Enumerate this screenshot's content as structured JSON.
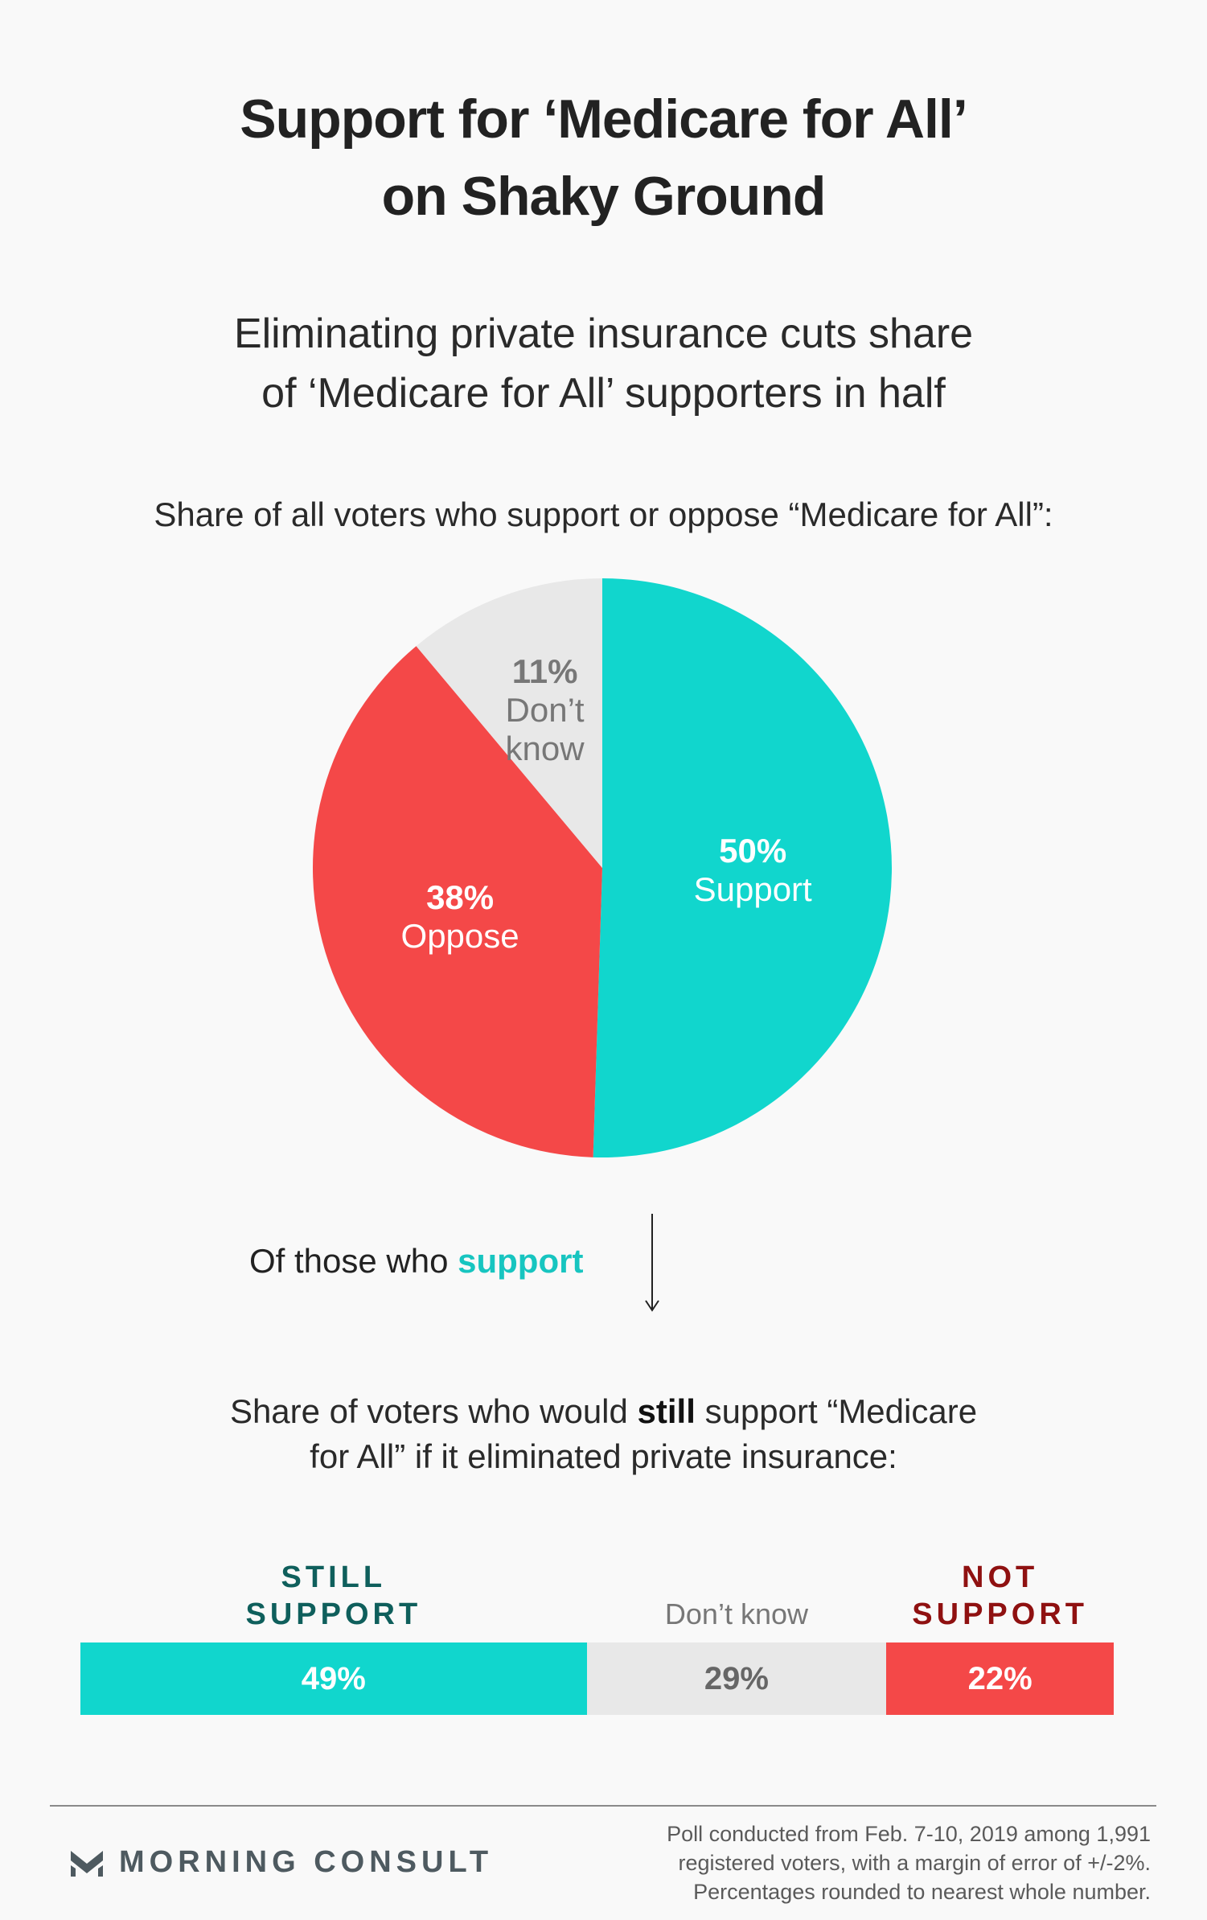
{
  "header": {
    "title_line1": "Support for ‘Medicare for All’",
    "title_line2": "on Shaky Ground",
    "subtitle_line1": "Eliminating private insurance cuts share",
    "subtitle_line2": "of ‘Medicare for All’ supporters in half"
  },
  "pie_section": {
    "caption": "Share of all voters who support or oppose “Medicare for All”:"
  },
  "transition": {
    "prefix": "Of those who ",
    "highlight": "support"
  },
  "bar_section": {
    "caption_part1": "Share of voters who would ",
    "caption_bold": "still",
    "caption_part2": " support “Medicare",
    "caption_line2": "for All” if it eliminated private insurance:"
  },
  "chart_data": [
    {
      "type": "pie",
      "slices": [
        {
          "label": "Support",
          "value": 50,
          "display": "50%",
          "color": "#11d6cd",
          "text_color": "#ffffff"
        },
        {
          "label": "Oppose",
          "value": 38,
          "display": "38%",
          "color": "#f44848",
          "text_color": "#ffffff"
        },
        {
          "label": "Don’t know",
          "label_lines": [
            "Don’t",
            "know"
          ],
          "value": 11,
          "display": "11%",
          "color": "#e8e8e8",
          "text_color": "#777777"
        }
      ]
    },
    {
      "type": "bar",
      "orientation": "horizontal-stacked",
      "segments": [
        {
          "label_lines": [
            "STILL",
            "SUPPORT"
          ],
          "value": 49,
          "display": "49%",
          "color": "#11d6cd",
          "head_color": "#0f5f5c",
          "text_color": "#ffffff"
        },
        {
          "label_lines": [
            "Don’t know"
          ],
          "value": 29,
          "display": "29%",
          "color": "#e8e8e8",
          "head_color": "#777777",
          "text_color": "#666666"
        },
        {
          "label_lines": [
            "NOT",
            "SUPPORT"
          ],
          "value": 22,
          "display": "22%",
          "color": "#f44848",
          "head_color": "#8f1111",
          "text_color": "#ffffff"
        }
      ]
    }
  ],
  "footer": {
    "logo_text": "MORNING CONSULT",
    "logo_icon": "chevron-m-icon",
    "note_line1": "Poll conducted from Feb. 7-10, 2019 among 1,991",
    "note_line2": "registered voters, with a margin of error of +/-2%.",
    "note_line3": "Percentages rounded to nearest whole number."
  }
}
